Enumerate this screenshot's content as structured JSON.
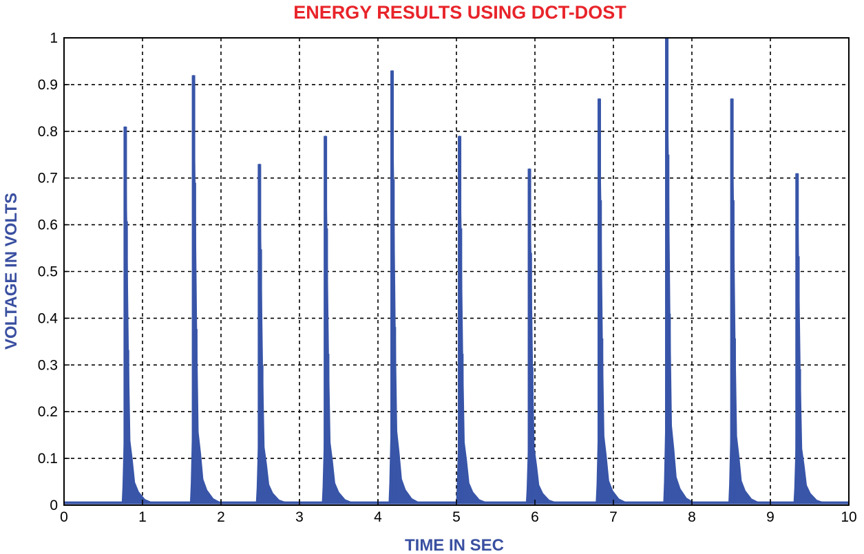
{
  "colors": {
    "title": "#e8242a",
    "axis_label": "#3a4fa0",
    "series": "#3855a8",
    "grid": "#000000",
    "axis": "#000000"
  },
  "chart_data": {
    "type": "line",
    "title": "ENERGY RESULTS USING DCT-DOST",
    "xlabel": "TIME IN SEC",
    "ylabel": "VOLTAGE IN VOLTS",
    "xlim": [
      0,
      10
    ],
    "ylim": [
      0,
      1
    ],
    "xticks": [
      "0",
      "1",
      "2",
      "3",
      "4",
      "5",
      "6",
      "7",
      "8",
      "9",
      "10"
    ],
    "yticks": [
      "0",
      "0.1",
      "0.2",
      "0.3",
      "0.4",
      "0.5",
      "0.6",
      "0.7",
      "0.8",
      "0.9",
      "1"
    ],
    "grid": true,
    "grid_style": "dashed",
    "baseline": 0.005,
    "series": [
      {
        "peaks": [
          {
            "t": 0.78,
            "peak": 0.81
          },
          {
            "t": 1.65,
            "peak": 0.92
          },
          {
            "t": 2.49,
            "peak": 0.73
          },
          {
            "t": 3.33,
            "peak": 0.79
          },
          {
            "t": 4.18,
            "peak": 0.93
          },
          {
            "t": 5.04,
            "peak": 0.79
          },
          {
            "t": 5.93,
            "peak": 0.72
          },
          {
            "t": 6.82,
            "peak": 0.87
          },
          {
            "t": 7.68,
            "peak": 1.0
          },
          {
            "t": 8.51,
            "peak": 0.87
          },
          {
            "t": 9.34,
            "peak": 0.71
          }
        ]
      }
    ]
  }
}
